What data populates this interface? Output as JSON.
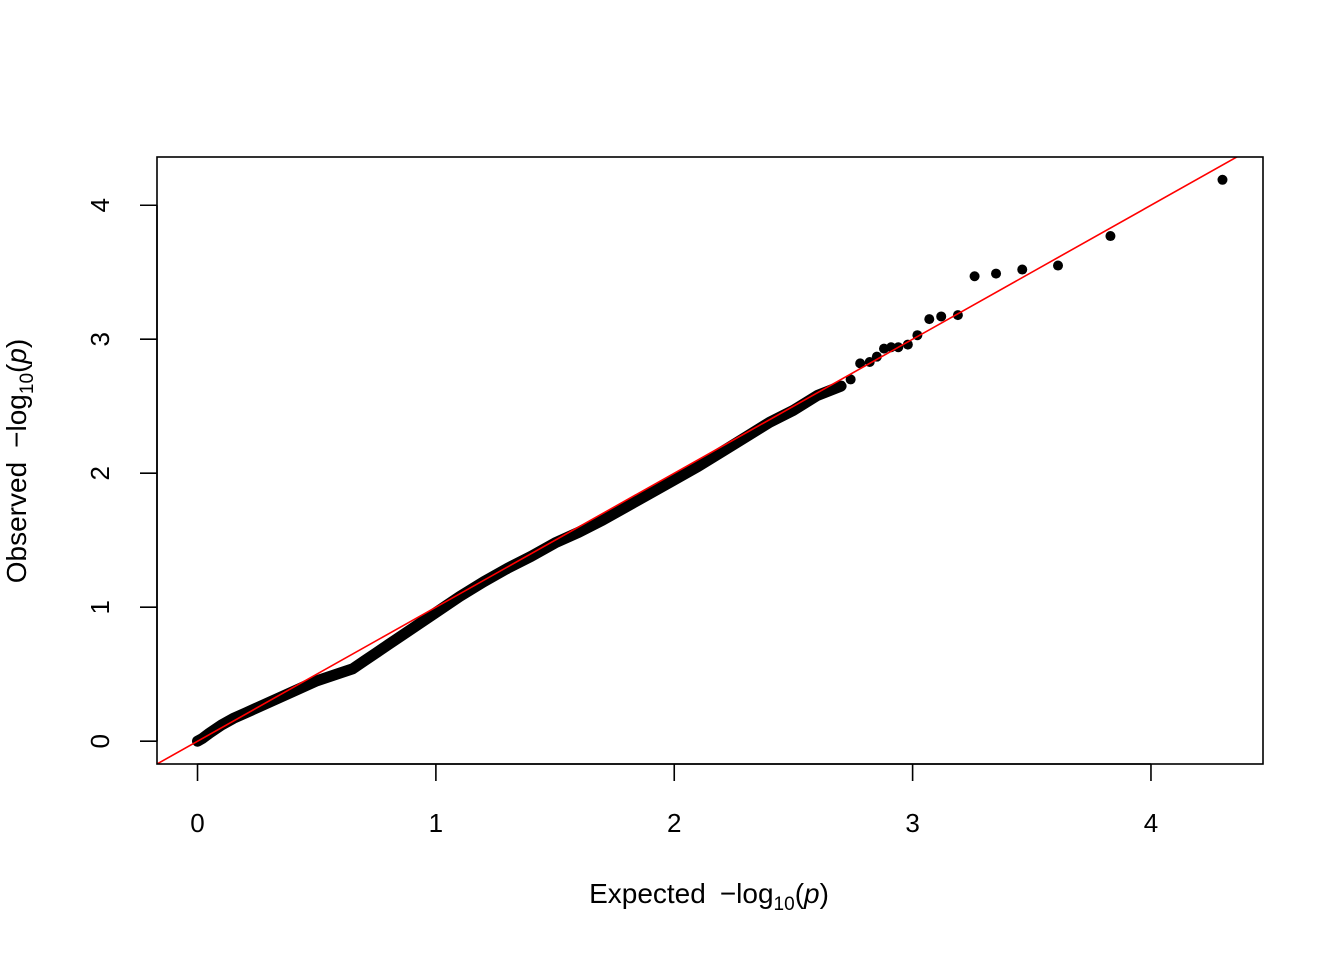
{
  "chart_data": {
    "type": "scatter",
    "title": "",
    "xlabel": {
      "prefix": "Expected",
      "func": "−log",
      "sub": "10",
      "open": "(",
      "var": "p",
      "close": ")"
    },
    "ylabel": {
      "prefix": "Observed",
      "func": "−log",
      "sub": "10",
      "open": "(",
      "var": "p",
      "close": ")"
    },
    "xlim": [
      -0.17,
      4.47
    ],
    "ylim": [
      -0.17,
      4.36
    ],
    "xticks": [
      0,
      1,
      2,
      3,
      4
    ],
    "yticks": [
      0,
      1,
      2,
      3,
      4
    ],
    "xtick_labels": [
      "0",
      "1",
      "2",
      "3",
      "4"
    ],
    "ytick_labels": [
      "0",
      "1",
      "2",
      "3",
      "4"
    ],
    "grid": false,
    "reference_line": {
      "slope": 1,
      "intercept": 0,
      "color": "#ff0000"
    },
    "point_color": "#000000",
    "series": [
      {
        "curve": {
          "x": [
            0.0,
            0.02,
            0.05,
            0.1,
            0.15,
            0.2,
            0.3,
            0.4,
            0.5,
            0.55,
            0.6,
            0.65,
            0.7,
            0.75,
            0.8,
            0.9,
            1.0,
            1.1,
            1.2,
            1.3,
            1.4,
            1.5,
            1.6,
            1.7,
            1.8,
            1.9,
            2.0,
            2.1,
            2.2,
            2.3,
            2.4,
            2.5,
            2.6,
            2.7
          ],
          "y": [
            0.0,
            0.02,
            0.06,
            0.12,
            0.17,
            0.21,
            0.29,
            0.37,
            0.45,
            0.48,
            0.51,
            0.54,
            0.6,
            0.66,
            0.72,
            0.84,
            0.96,
            1.08,
            1.19,
            1.29,
            1.38,
            1.48,
            1.56,
            1.65,
            1.75,
            1.85,
            1.95,
            2.05,
            2.16,
            2.27,
            2.38,
            2.47,
            2.58,
            2.65
          ]
        },
        "tail": {
          "x": [
            2.74,
            2.78,
            2.82,
            2.85,
            2.88,
            2.91,
            2.94,
            2.98,
            3.02,
            3.07,
            3.12,
            3.19,
            3.26,
            3.35,
            3.46,
            3.61,
            3.83,
            4.3
          ],
          "y": [
            2.7,
            2.82,
            2.83,
            2.87,
            2.93,
            2.94,
            2.94,
            2.96,
            3.03,
            3.15,
            3.17,
            3.18,
            3.47,
            3.49,
            3.52,
            3.55,
            3.77,
            4.19
          ]
        }
      }
    ]
  }
}
